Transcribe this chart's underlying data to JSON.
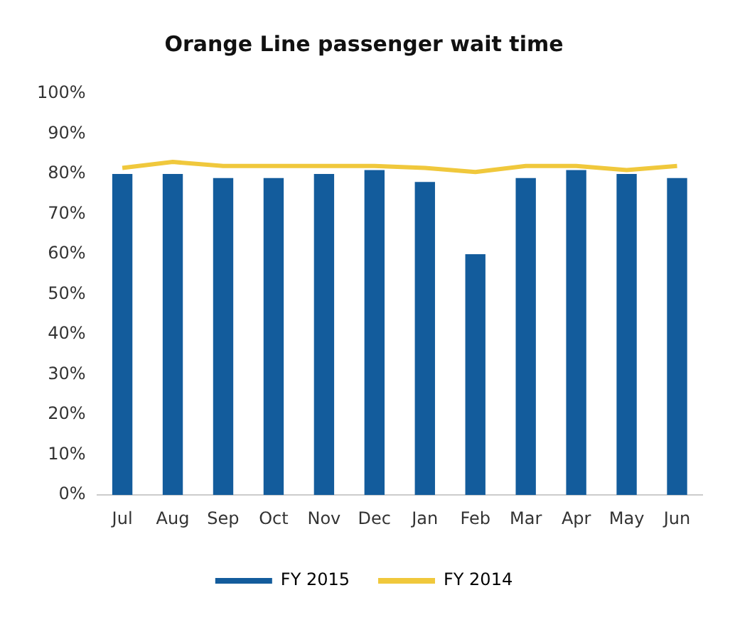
{
  "chart_data": {
    "type": "bar",
    "title": "Orange Line passenger wait time",
    "categories": [
      "Jul",
      "Aug",
      "Sep",
      "Oct",
      "Nov",
      "Dec",
      "Jan",
      "Feb",
      "Mar",
      "Apr",
      "May",
      "Jun"
    ],
    "series": [
      {
        "name": "FY 2015",
        "color": "#135c9c",
        "values": [
          80,
          80,
          79,
          79,
          80,
          81,
          78,
          60,
          79,
          81,
          80,
          79
        ]
      },
      {
        "name": "FY 2014",
        "type": "line",
        "color": "#f0c83c",
        "values": [
          81.5,
          83,
          82,
          82,
          82,
          82,
          81.5,
          80.5,
          82,
          82,
          81,
          82
        ]
      }
    ],
    "ylim": [
      0,
      100
    ],
    "yticks": [
      {
        "value": 0,
        "label": "0%"
      },
      {
        "value": 10,
        "label": "10%"
      },
      {
        "value": 20,
        "label": "20%"
      },
      {
        "value": 30,
        "label": "30%"
      },
      {
        "value": 40,
        "label": "40%"
      },
      {
        "value": 50,
        "label": "50%"
      },
      {
        "value": 60,
        "label": "60%"
      },
      {
        "value": 70,
        "label": "70%"
      },
      {
        "value": 80,
        "label": "80%"
      },
      {
        "value": 90,
        "label": "90%"
      },
      {
        "value": 100,
        "label": "100%"
      }
    ],
    "grid": false,
    "legend": "bottom",
    "marker": "none"
  }
}
